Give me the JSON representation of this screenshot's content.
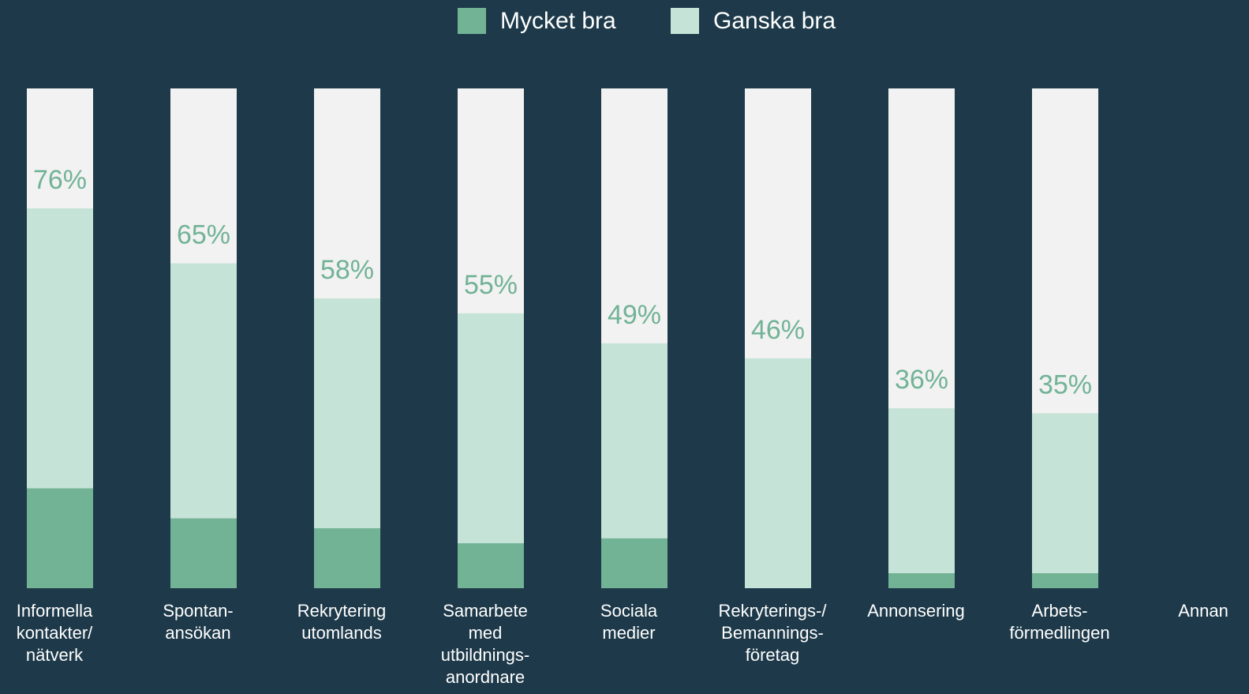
{
  "chart_data": {
    "type": "stacked-bar",
    "categories": [
      [
        "Informella",
        "kontakter/",
        "nätverk"
      ],
      [
        "Spontan-",
        "ansökan"
      ],
      [
        "Rekrytering",
        "utomlands"
      ],
      [
        "Samarbete",
        "med",
        "utbildnings-",
        "anordnare"
      ],
      [
        "Sociala",
        "medier"
      ],
      [
        "Rekryterings-/",
        "Bemannings-",
        "företag"
      ],
      [
        "Annonsering"
      ],
      [
        "Arbets-",
        "förmedlingen"
      ],
      [
        "Annan"
      ]
    ],
    "series": [
      {
        "name": "Mycket bra",
        "color": "#72b396",
        "values": [
          20,
          14,
          12,
          9,
          10,
          0,
          3,
          3,
          null
        ]
      },
      {
        "name": "Ganska bra",
        "color": "#c6e3d7",
        "values": [
          56,
          51,
          46,
          46,
          39,
          46,
          33,
          32,
          null
        ]
      }
    ],
    "totals": [
      76,
      65,
      58,
      55,
      49,
      46,
      36,
      35,
      null
    ],
    "total_labels": [
      "76%",
      "65%",
      "58%",
      "55%",
      "49%",
      "46%",
      "36%",
      "35%",
      null
    ],
    "ylim": [
      0,
      100
    ],
    "legend": "top",
    "background_bar": "#f2f2f2",
    "label_color": "#72b396"
  }
}
